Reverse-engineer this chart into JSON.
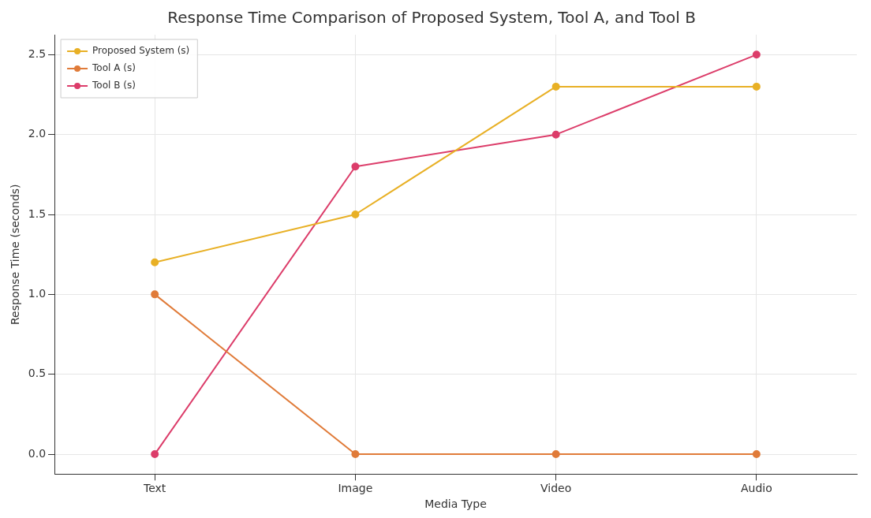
{
  "chart_data": {
    "type": "line",
    "title": "Response Time Comparison of Proposed System, Tool A, and Tool B",
    "xlabel": "Media Type",
    "ylabel": "Response Time (seconds)",
    "categories": [
      "Text",
      "Image",
      "Video",
      "Audio"
    ],
    "series": [
      {
        "name": "Proposed System (s)",
        "color": "#e8b025",
        "values": [
          1.2,
          1.5,
          2.3,
          2.3
        ]
      },
      {
        "name": "Tool A (s)",
        "color": "#e07b39",
        "values": [
          1.0,
          0,
          0,
          0
        ]
      },
      {
        "name": "Tool B (s)",
        "color": "#dc3d6a",
        "values": [
          0,
          1.8,
          2.0,
          2.5
        ]
      }
    ],
    "ylim": [
      -0.125,
      2.625
    ],
    "yticks": [
      {
        "value": 0,
        "label": "0.0"
      },
      {
        "value": 0.5,
        "label": "0.5"
      },
      {
        "value": 1,
        "label": "1.0"
      },
      {
        "value": 1.5,
        "label": "1.5"
      },
      {
        "value": 2,
        "label": "2.0"
      },
      {
        "value": 2.5,
        "label": "2.5"
      }
    ],
    "grid": true,
    "legend": "top left",
    "marker": "circle",
    "line_style": "solid"
  }
}
